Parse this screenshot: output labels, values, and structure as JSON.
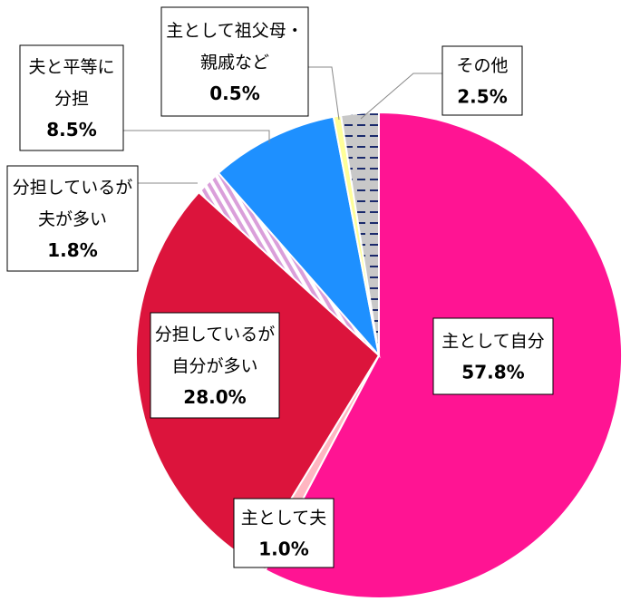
{
  "chart_data": {
    "type": "pie",
    "start_angle_deg": 0,
    "direction": "clockwise",
    "slices": [
      {
        "label_lines": [
          "主として自分"
        ],
        "value": 57.8,
        "value_text": "57.8%",
        "color": "#ff1493",
        "pattern": "solid"
      },
      {
        "label_lines": [
          "主として夫"
        ],
        "value": 1.0,
        "value_text": "1.0%",
        "color": "#ffb6c1",
        "pattern": "solid"
      },
      {
        "label_lines": [
          "分担しているが",
          "自分が多い"
        ],
        "value": 28.0,
        "value_text": "28.0%",
        "color": "#dc143c",
        "pattern": "solid"
      },
      {
        "label_lines": [
          "分担しているが",
          "夫が多い"
        ],
        "value": 1.8,
        "value_text": "1.8%",
        "color": "#da9fda",
        "pattern": "diagonal-stripes"
      },
      {
        "label_lines": [
          "夫と平等に",
          "分担"
        ],
        "value": 8.5,
        "value_text": "8.5%",
        "color": "#1e90ff",
        "pattern": "solid"
      },
      {
        "label_lines": [
          "主として祖父母・",
          "親戚など"
        ],
        "value": 0.5,
        "value_text": "0.5%",
        "color": "#ffff99",
        "pattern": "solid"
      },
      {
        "label_lines": [
          "その他"
        ],
        "value": 2.5,
        "value_text": "2.5%",
        "color": "#c8c8c8",
        "pattern": "dashes"
      }
    ]
  }
}
